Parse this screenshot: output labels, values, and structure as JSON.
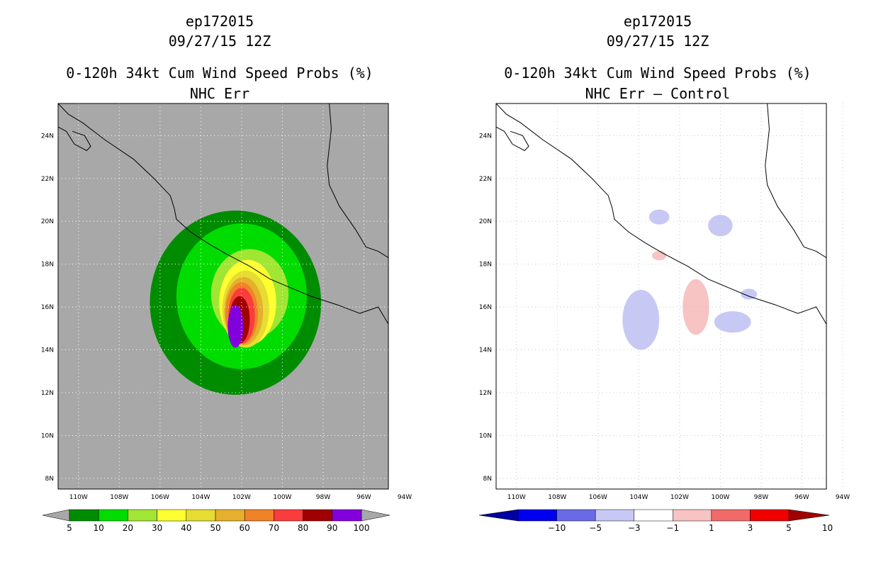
{
  "left_panel": {
    "storm_id": "ep172015",
    "date": "09/27/15 12Z",
    "product": "0-120h 34kt Cum Wind Speed Probs (%)",
    "subtitle": "NHC Err"
  },
  "right_panel": {
    "storm_id": "ep172015",
    "date": "09/27/15 12Z",
    "product": "0-120h 34kt Cum Wind Speed Probs (%)",
    "subtitle": "NHC Err – Control"
  },
  "chart_data": [
    {
      "type": "heatmap",
      "title": "0-120h 34kt Cum Wind Speed Probs (%)",
      "subtitle": "NHC Err",
      "x_axis": {
        "ticks": [
          "110W",
          "108W",
          "106W",
          "104W",
          "102W",
          "100W",
          "98W",
          "96W",
          "94W"
        ],
        "range": [
          -111,
          -94.8
        ]
      },
      "y_axis": {
        "ticks": [
          "24N",
          "22N",
          "20N",
          "18N",
          "16N",
          "14N",
          "12N",
          "10N",
          "8N"
        ],
        "range": [
          7.5,
          25.5
        ]
      },
      "grid": true,
      "background": "#a8a8a8",
      "colorbar": {
        "labels": [
          "5",
          "10",
          "20",
          "30",
          "40",
          "50",
          "60",
          "70",
          "80",
          "90",
          "100"
        ],
        "colors": [
          "#008c00",
          "#00dc00",
          "#a0e632",
          "#ffff32",
          "#e6dc32",
          "#e6af2d",
          "#f08228",
          "#fa3c3c",
          "#a00000",
          "#8200dc"
        ]
      },
      "contours": [
        {
          "level": "5-10",
          "center": [
            -102.3,
            16.2
          ],
          "rx": 4.2,
          "ry": 4.3
        },
        {
          "level": "10-20",
          "center": [
            -102.0,
            16.5
          ],
          "rx": 3.2,
          "ry": 3.4
        },
        {
          "level": "20-30",
          "center": [
            -101.6,
            16.6
          ],
          "rx": 1.9,
          "ry": 2.1
        },
        {
          "level": "30-40",
          "center": [
            -101.7,
            16.2
          ],
          "rx": 1.4,
          "ry": 2.0
        },
        {
          "level": "40-50",
          "center": [
            -101.8,
            15.9
          ],
          "rx": 1.15,
          "ry": 1.8
        },
        {
          "level": "50-60",
          "center": [
            -101.9,
            15.8
          ],
          "rx": 0.95,
          "ry": 1.6
        },
        {
          "level": "60-70",
          "center": [
            -102.0,
            15.7
          ],
          "rx": 0.8,
          "ry": 1.45
        },
        {
          "level": "70-80",
          "center": [
            -102.0,
            15.6
          ],
          "rx": 0.65,
          "ry": 1.3
        },
        {
          "level": "80-90",
          "center": [
            -102.1,
            15.4
          ],
          "rx": 0.5,
          "ry": 1.1
        },
        {
          "level": "90-100",
          "center": [
            -102.3,
            15.1
          ],
          "rx": 0.38,
          "ry": 1.0
        }
      ]
    },
    {
      "type": "heatmap",
      "title": "0-120h 34kt Cum Wind Speed Probs (%)",
      "subtitle": "NHC Err – Control",
      "x_axis": {
        "ticks": [
          "110W",
          "108W",
          "106W",
          "104W",
          "102W",
          "100W",
          "98W",
          "96W",
          "94W"
        ],
        "range": [
          -111,
          -94.8
        ]
      },
      "y_axis": {
        "ticks": [
          "24N",
          "22N",
          "20N",
          "18N",
          "16N",
          "14N",
          "12N",
          "10N",
          "8N"
        ],
        "range": [
          7.5,
          25.5
        ]
      },
      "grid": true,
      "background": "#ffffff",
      "colorbar": {
        "labels": [
          "-10",
          "-5",
          "-3",
          "-1",
          "1",
          "3",
          "5",
          "10"
        ],
        "colors": [
          "#0000a0",
          "#0000f0",
          "#6a6ae6",
          "#c8c8f5",
          "#ffffff",
          "#f7c3c3",
          "#f06a6a",
          "#f00000",
          "#a00000"
        ]
      },
      "contours": [
        {
          "level": "-3 to -1",
          "center": [
            -103.9,
            15.4
          ],
          "rx": 0.9,
          "ry": 1.4
        },
        {
          "level": "-3 to -1",
          "center": [
            -99.4,
            15.3
          ],
          "rx": 0.9,
          "ry": 0.5
        },
        {
          "level": "-3 to -1",
          "center": [
            -100.0,
            19.8
          ],
          "rx": 0.6,
          "ry": 0.5
        },
        {
          "level": "-3 to -1",
          "center": [
            -103.0,
            20.2
          ],
          "rx": 0.5,
          "ry": 0.35
        },
        {
          "level": "-3 to -1",
          "center": [
            -98.6,
            16.6
          ],
          "rx": 0.4,
          "ry": 0.25
        },
        {
          "level": "1 to 3",
          "center": [
            -101.2,
            16.0
          ],
          "rx": 0.65,
          "ry": 1.3
        },
        {
          "level": "1 to 3",
          "center": [
            -103.0,
            18.4
          ],
          "rx": 0.35,
          "ry": 0.22
        }
      ]
    }
  ]
}
